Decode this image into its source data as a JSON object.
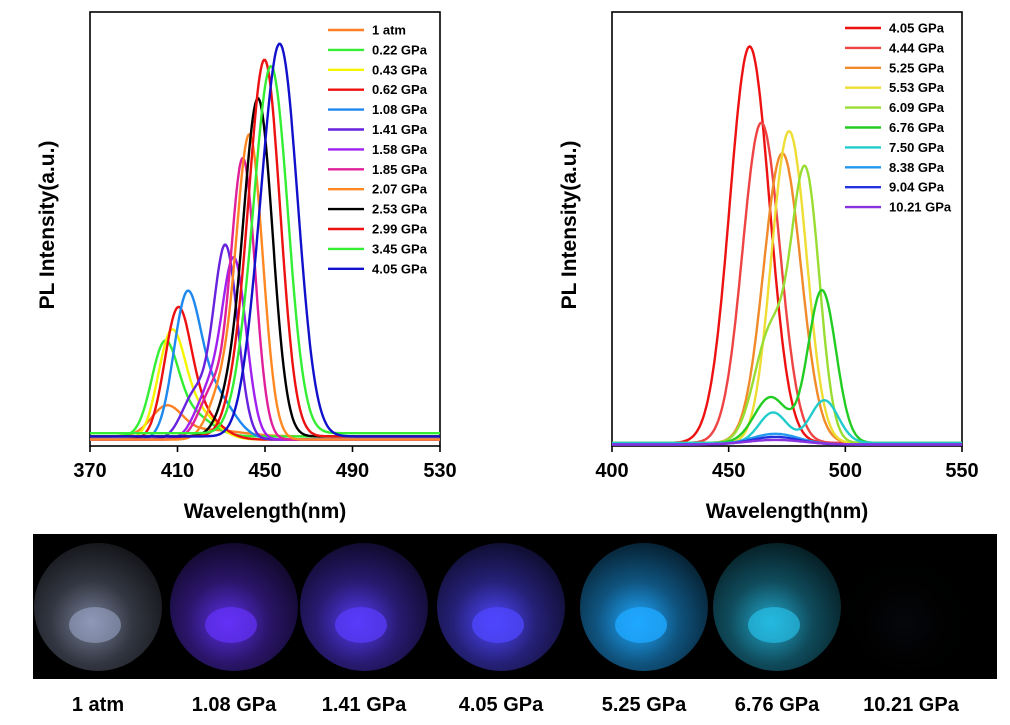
{
  "chart_data": [
    {
      "type": "line",
      "xlabel": "Wavelength(nm)",
      "ylabel": "PL Intensity(a.u.)",
      "xlim": [
        370,
        530
      ],
      "xticks": [
        "370",
        "410",
        "450",
        "490",
        "530"
      ],
      "legend_position": "top-right",
      "series": [
        {
          "name": "1 atm",
          "color": "#ff7f27",
          "peaks": [
            [
              405,
              0.09,
              7
            ],
            [
              425,
              0.02,
              14
            ]
          ],
          "baseline": 0.03
        },
        {
          "name": "0.22 GPa",
          "color": "#33ee33",
          "peaks": [
            [
              404,
              0.27,
              6
            ],
            [
              416,
              0.07,
              9
            ]
          ],
          "baseline": 0.03
        },
        {
          "name": "0.43 GPa",
          "color": "#f5f500",
          "peaks": [
            [
              407,
              0.3,
              6
            ],
            [
              418,
              0.09,
              9
            ]
          ],
          "baseline": 0.02
        },
        {
          "name": "0.62 GPa",
          "color": "#ee1111",
          "peaks": [
            [
              410,
              0.37,
              6
            ],
            [
              420,
              0.08,
              9
            ]
          ],
          "baseline": 0.02
        },
        {
          "name": "1.08 GPa",
          "color": "#1e88ee",
          "peaks": [
            [
              414,
              0.4,
              6
            ],
            [
              426,
              0.15,
              9
            ]
          ],
          "baseline": 0.02
        },
        {
          "name": "1.41 GPa",
          "color": "#6622dd",
          "peaks": [
            [
              418,
              0.14,
              6
            ],
            [
              432,
              0.6,
              5.5
            ]
          ],
          "baseline": 0.02
        },
        {
          "name": "1.58 GPa",
          "color": "#a020f0",
          "peaks": [
            [
              424,
              0.14,
              6
            ],
            [
              436,
              0.55,
              5.5
            ]
          ],
          "baseline": 0.02
        },
        {
          "name": "1.85 GPa",
          "color": "#e0209a",
          "peaks": [
            [
              426,
              0.15,
              6
            ],
            [
              440,
              0.87,
              5.5
            ]
          ],
          "baseline": 0.02
        },
        {
          "name": "2.07 GPa",
          "color": "#ff8822",
          "peaks": [
            [
              430,
              0.14,
              6
            ],
            [
              443,
              0.94,
              6
            ]
          ],
          "baseline": 0.02
        },
        {
          "name": "2.53 GPa",
          "color": "#000000",
          "peaks": [
            [
              435,
              0.12,
              6
            ],
            [
              447,
              1.04,
              6.5
            ]
          ],
          "baseline": 0.03
        },
        {
          "name": "2.99 GPa",
          "color": "#ee1111",
          "peaks": [
            [
              438,
              0.12,
              6
            ],
            [
              450,
              1.16,
              7
            ]
          ],
          "baseline": 0.03
        },
        {
          "name": "3.45 GPa",
          "color": "#33ee33",
          "peaks": [
            [
              441,
              0.12,
              6
            ],
            [
              453,
              1.13,
              7.5
            ]
          ],
          "baseline": 0.04
        },
        {
          "name": "4.05 GPa",
          "color": "#1111cc",
          "peaks": [
            [
              445,
              0.12,
              6
            ],
            [
              457,
              1.21,
              8
            ]
          ],
          "baseline": 0.03
        }
      ]
    },
    {
      "type": "line",
      "xlabel": "Wavelength(nm)",
      "ylabel": "PL Intensity(a.u.)",
      "xlim": [
        400,
        550
      ],
      "xticks": [
        "400",
        "450",
        "500",
        "550"
      ],
      "legend_position": "top-right",
      "series": [
        {
          "name": "4.05 GPa",
          "color": "#ee1111",
          "peaks": [
            [
              459,
              1.3,
              8.5
            ]
          ],
          "baseline": 0.01
        },
        {
          "name": "4.44 GPa",
          "color": "#ee4444",
          "peaks": [
            [
              464,
              1.05,
              8
            ]
          ],
          "baseline": 0.01
        },
        {
          "name": "5.25 GPa",
          "color": "#f08a2a",
          "peaks": [
            [
              473,
              0.95,
              8
            ]
          ],
          "baseline": 0.01
        },
        {
          "name": "5.53 GPa",
          "color": "#eedd33",
          "peaks": [
            [
              470,
              0.2,
              6
            ],
            [
              477,
              0.91,
              7
            ]
          ],
          "baseline": 0.01
        },
        {
          "name": "6.09 GPa",
          "color": "#99dd33",
          "peaks": [
            [
              468,
              0.36,
              7
            ],
            [
              483,
              0.87,
              6
            ]
          ],
          "baseline": 0.01
        },
        {
          "name": "6.76 GPa",
          "color": "#22cc22",
          "peaks": [
            [
              468,
              0.15,
              7
            ],
            [
              490,
              0.5,
              6
            ]
          ],
          "baseline": 0.01
        },
        {
          "name": "7.50 GPa",
          "color": "#22cccc",
          "peaks": [
            [
              469,
              0.1,
              6
            ],
            [
              491,
              0.14,
              6
            ]
          ],
          "baseline": 0.01
        },
        {
          "name": "8.38 GPa",
          "color": "#2299ee",
          "peaks": [
            [
              470,
              0.035,
              10
            ]
          ],
          "baseline": 0.005
        },
        {
          "name": "9.04 GPa",
          "color": "#2233dd",
          "peaks": [
            [
              470,
              0.025,
              10
            ]
          ],
          "baseline": 0.005
        },
        {
          "name": "10.21 GPa",
          "color": "#8833dd",
          "peaks": [
            [
              470,
              0.015,
              12
            ]
          ],
          "baseline": 0.005
        }
      ]
    }
  ],
  "photos": {
    "items": [
      {
        "label": "1 atm",
        "color": "#a8b4d8",
        "intensity": 0.55
      },
      {
        "label": "1.08 GPa",
        "color": "#6633ff",
        "intensity": 0.75
      },
      {
        "label": "1.41 GPa",
        "color": "#5a3cff",
        "intensity": 0.8
      },
      {
        "label": "4.05 GPa",
        "color": "#4f46ff",
        "intensity": 0.85
      },
      {
        "label": "5.25 GPa",
        "color": "#1fa8ff",
        "intensity": 0.9
      },
      {
        "label": "6.76 GPa",
        "color": "#28c4ee",
        "intensity": 0.7
      },
      {
        "label": "10.21 GPa",
        "color": "#1a2030",
        "intensity": 0.05
      }
    ]
  }
}
